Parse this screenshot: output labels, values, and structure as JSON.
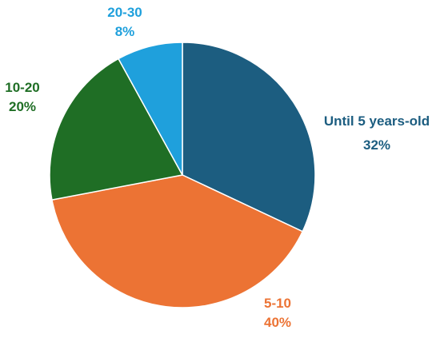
{
  "chart_data": {
    "type": "pie",
    "categories": [
      "Until 5 years-old",
      "5-10",
      "10-20",
      "20-30"
    ],
    "values": [
      32,
      40,
      20,
      8
    ],
    "value_labels": [
      "32%",
      "40%",
      "20%",
      "8%"
    ],
    "colors": [
      "#1c5d80",
      "#ec7334",
      "#1f6e25",
      "#1fa0dc"
    ],
    "start_angle_deg": 0,
    "direction": "clockwise",
    "legend": "none"
  }
}
